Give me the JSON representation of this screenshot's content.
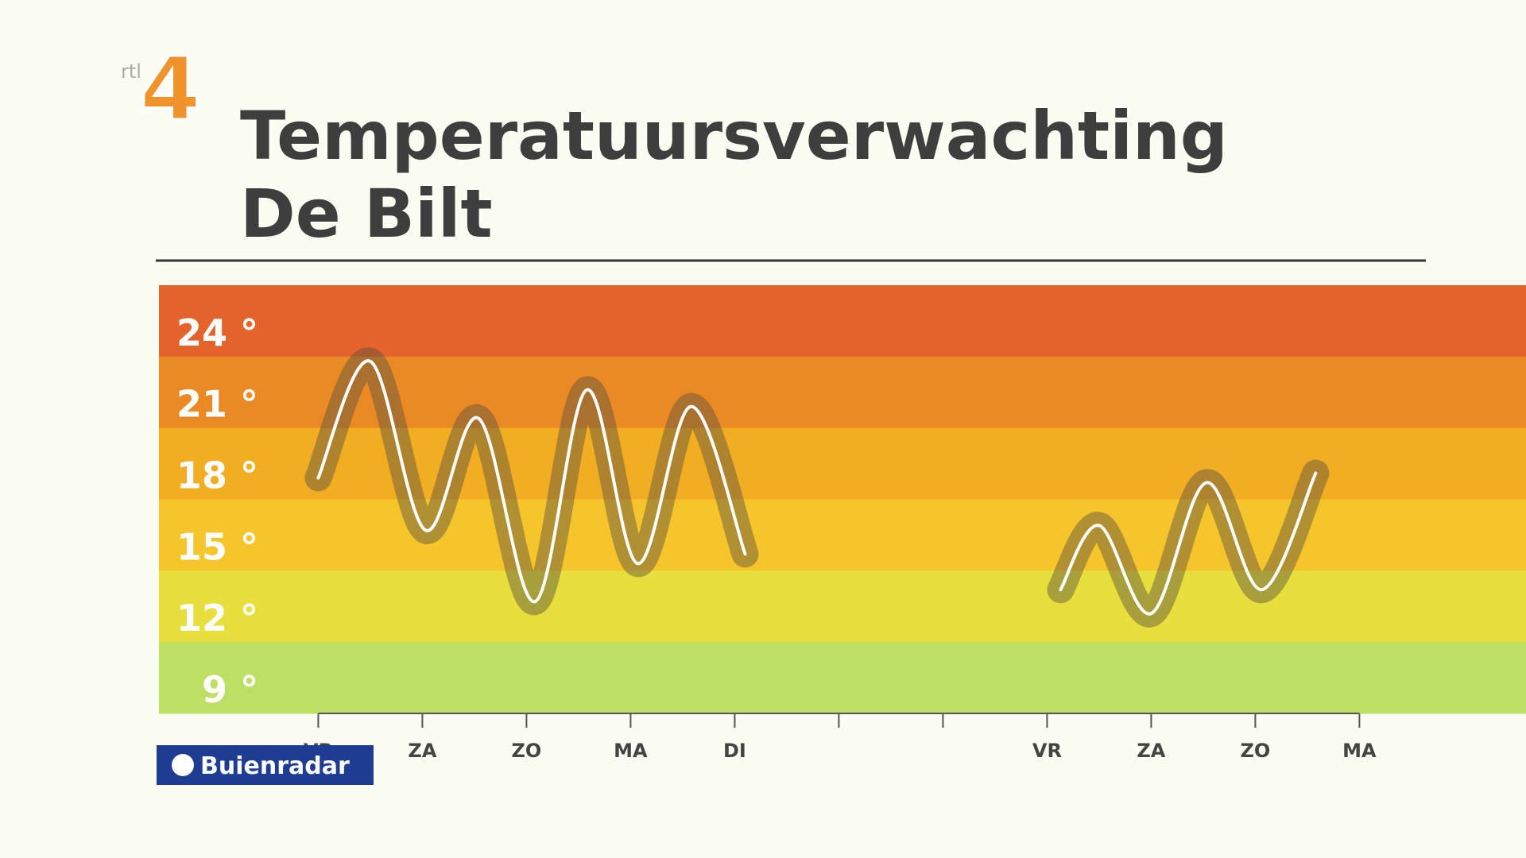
{
  "branding": {
    "channel_prefix": "rtl",
    "channel_number": "4",
    "partner": "Buienradar"
  },
  "chart_data": {
    "type": "line",
    "title": "Temperatuursverwachting",
    "subtitle": "De Bilt",
    "x": [
      0,
      0.5,
      1.03,
      1.54,
      2.08,
      2.58,
      3.07,
      3.58,
      4.1,
      5.6,
      7.13,
      7.5,
      8.0,
      8.53,
      9.06,
      9.58
    ],
    "series": [
      {
        "color": "#ffffff",
        "values": [
          17.9,
          22.8,
          15.7,
          20.4,
          12.7,
          21.6,
          14.3,
          20.9,
          14.7,
          null,
          13.2,
          15.9,
          12.2,
          17.7,
          13.2,
          18.1
        ]
      }
    ],
    "categories": [
      "VR",
      "ZA",
      "ZO",
      "MA",
      "DI",
      null,
      null,
      "VR",
      "ZA",
      "ZO",
      "MA"
    ],
    "xticks": [
      0,
      1,
      2,
      3,
      4,
      5,
      6,
      7,
      8,
      9,
      10
    ],
    "xlim": [
      -1.53,
      11.6
    ],
    "ylim": [
      8,
      26
    ],
    "yticks": [
      {
        "value": 24,
        "label": "24 °"
      },
      {
        "value": 21,
        "label": "21 °"
      },
      {
        "value": 18,
        "label": "18 °"
      },
      {
        "value": 15,
        "label": "15 °"
      },
      {
        "value": 12,
        "label": "12 °"
      },
      {
        "value": 9,
        "label": "9 °"
      }
    ],
    "band_colors": [
      "#e4632a",
      "#eb8a25",
      "#f2ad23",
      "#f6c52c",
      "#e9df3c",
      "#bddf63"
    ]
  }
}
